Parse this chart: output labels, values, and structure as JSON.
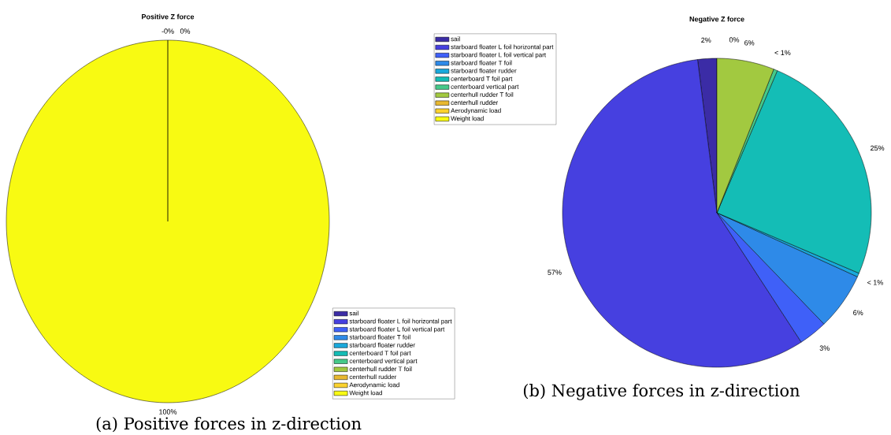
{
  "chart_data": [
    {
      "type": "pie",
      "title": "Positive Z force",
      "categories": [
        "sail",
        "starboard floater L foil horizontal part",
        "starboard floater L foil vertical part",
        "starboard floater T foil",
        "starboard floater rudder",
        "centerboard T foil part",
        "centerboard vertical part",
        "centerhull rudder T foil",
        "centerhull rudder",
        "Aerodynamic load",
        "Weight load"
      ],
      "values": [
        0,
        0,
        0,
        0,
        0,
        0,
        0,
        0,
        0,
        0,
        100
      ],
      "colors": [
        "#3b2ca6",
        "#4640e0",
        "#3f60f8",
        "#2e8ae8",
        "#1aa9dc",
        "#14bdb6",
        "#46c98a",
        "#a2c940",
        "#e8b830",
        "#fbd22e",
        "#f8fa12"
      ],
      "value_labels": [
        "-0%",
        "0%",
        null,
        null,
        null,
        null,
        null,
        null,
        null,
        null,
        "100%"
      ],
      "legend": "bottom right",
      "annotations": [
        "(a) Positive forces in z-direction"
      ]
    },
    {
      "type": "pie",
      "title": "Negative Z force",
      "categories": [
        "sail",
        "starboard floater L foil horizontal part",
        "starboard floater L foil vertical part",
        "starboard floater T foil",
        "starboard floater rudder",
        "centerboard T foil part",
        "centerboard vertical part",
        "centerhull rudder T foil",
        "centerhull rudder",
        "Aerodynamic load",
        "Weight load"
      ],
      "values": [
        2,
        57.2,
        3,
        6,
        0.4,
        25,
        0.4,
        6,
        0,
        0,
        0
      ],
      "colors": [
        "#3b2ca6",
        "#4640e0",
        "#3f60f8",
        "#2e8ae8",
        "#1aa9dc",
        "#14bdb6",
        "#46c98a",
        "#a2c940",
        "#e8b830",
        "#fbd22e",
        "#f8fa12"
      ],
      "value_labels": [
        "2%",
        "57%",
        "3%",
        "6%",
        "< 1%",
        "25%",
        "< 1%",
        "6%",
        null,
        null,
        "0%"
      ],
      "legend": "top left",
      "annotations": [
        "(b) Negative forces in z-direction"
      ]
    }
  ]
}
